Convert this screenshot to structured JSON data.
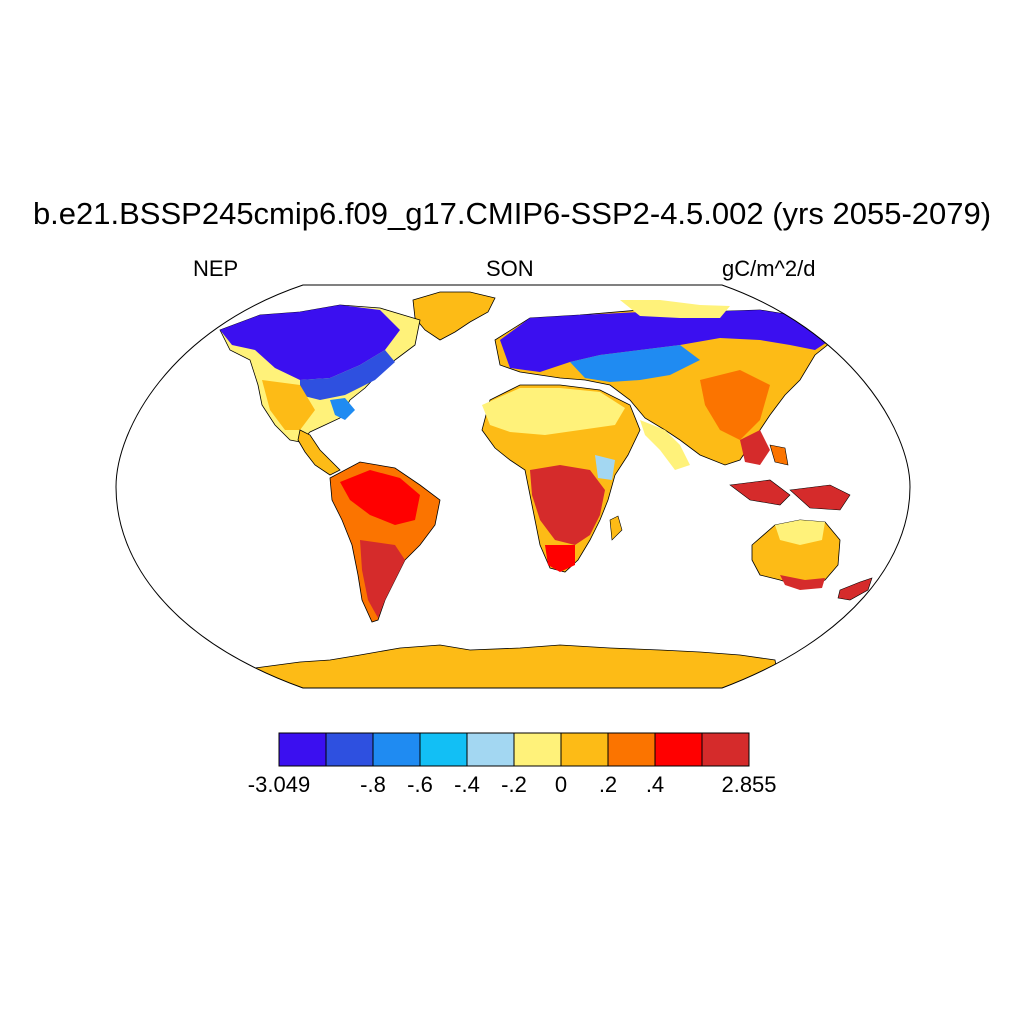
{
  "title": "b.e21.BSSP245cmip6.f09_g17.CMIP6-SSP2-4.5.002 (yrs 2055-2079)",
  "left_label": "NEP",
  "center_label": "SON",
  "right_label": "gC/m^2/d",
  "colorbar": {
    "colors": [
      "#3b0ff0",
      "#2e50e0",
      "#1f8bf2",
      "#12bff5",
      "#a3d7f2",
      "#fff27a",
      "#fdbb16",
      "#fb7400",
      "#ff0000",
      "#d52b2b"
    ],
    "labels": [
      "-3.049",
      "-.8",
      "-.6",
      "-.4",
      "-.2",
      "0",
      ".2",
      ".4",
      "2.855"
    ]
  }
}
